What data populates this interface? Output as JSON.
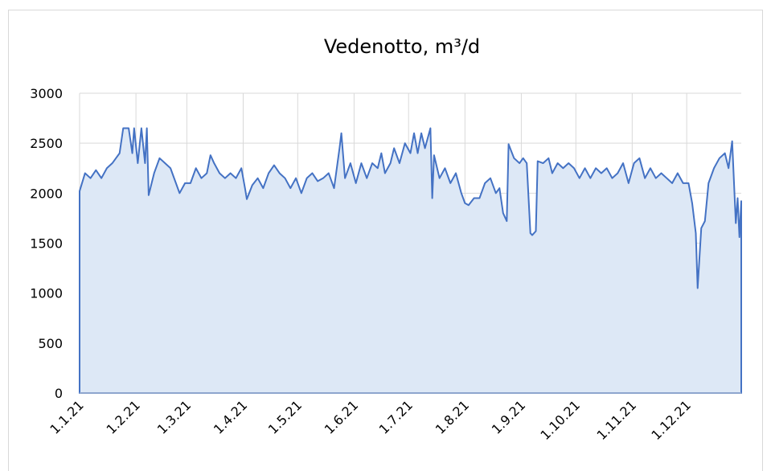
{
  "chart_data": {
    "type": "area",
    "title": "Vedenotto,  m³/d",
    "color": "#4472c4",
    "fill": "#dde8f6",
    "x": [
      0,
      3,
      6,
      9,
      12,
      15,
      18,
      20,
      22,
      24,
      27,
      29,
      30,
      32,
      34,
      36,
      37,
      38,
      41,
      44,
      47,
      50,
      53,
      55,
      58,
      61,
      64,
      67,
      70,
      72,
      74,
      77,
      80,
      83,
      86,
      89,
      91,
      92,
      95,
      98,
      101,
      104,
      107,
      110,
      113,
      116,
      119,
      122,
      125,
      128,
      131,
      134,
      137,
      140,
      143,
      144,
      146,
      149,
      152,
      155,
      158,
      161,
      164,
      166,
      168,
      171,
      173,
      176,
      179,
      182,
      184,
      186,
      188,
      190,
      193,
      194,
      195,
      198,
      201,
      204,
      207,
      210,
      212,
      214,
      217,
      220,
      223,
      226,
      229,
      231,
      233,
      235,
      236,
      239,
      242,
      244,
      246,
      248,
      249,
      251,
      252,
      255,
      258,
      260,
      263,
      266,
      269,
      272,
      275,
      278,
      281,
      284,
      287,
      290,
      293,
      296,
      299,
      302,
      305,
      308,
      311,
      314,
      317,
      320,
      323,
      326,
      329,
      332,
      335,
      337,
      339,
      340,
      342,
      344,
      346,
      349,
      352,
      355,
      357,
      359,
      361,
      362,
      363,
      364
    ],
    "values": [
      2020,
      2200,
      2150,
      2230,
      2150,
      2250,
      2300,
      2350,
      2400,
      2650,
      2650,
      2400,
      2650,
      2300,
      2650,
      2300,
      2650,
      1980,
      2200,
      2350,
      2300,
      2250,
      2100,
      2000,
      2100,
      2100,
      2250,
      2150,
      2200,
      2380,
      2300,
      2200,
      2150,
      2200,
      2150,
      2250,
      2050,
      1940,
      2080,
      2150,
      2050,
      2200,
      2280,
      2200,
      2150,
      2050,
      2150,
      2000,
      2150,
      2200,
      2120,
      2150,
      2200,
      2050,
      2450,
      2600,
      2150,
      2300,
      2100,
      2300,
      2150,
      2300,
      2250,
      2400,
      2200,
      2300,
      2450,
      2300,
      2500,
      2400,
      2600,
      2400,
      2600,
      2450,
      2650,
      1950,
      2380,
      2150,
      2250,
      2100,
      2200,
      2000,
      1900,
      1880,
      1950,
      1950,
      2100,
      2150,
      2000,
      2050,
      1800,
      1720,
      2490,
      2350,
      2300,
      2350,
      2300,
      1600,
      1580,
      1620,
      2320,
      2300,
      2350,
      2200,
      2300,
      2250,
      2300,
      2250,
      2150,
      2250,
      2150,
      2250,
      2200,
      2250,
      2150,
      2200,
      2300,
      2100,
      2300,
      2350,
      2150,
      2250,
      2150,
      2200,
      2150,
      2100,
      2200,
      2100,
      2100,
      1900,
      1600,
      1050,
      1650,
      1720,
      2100,
      2250,
      2350,
      2400,
      2250,
      2520,
      1700,
      1950,
      1560,
      1920
    ],
    "xlim": [
      0,
      364
    ],
    "xticks": [
      {
        "value": 0,
        "label": "1.1.21"
      },
      {
        "value": 31,
        "label": "1.2.21"
      },
      {
        "value": 59,
        "label": "1.3.21"
      },
      {
        "value": 90,
        "label": "1.4.21"
      },
      {
        "value": 120,
        "label": "1.5.21"
      },
      {
        "value": 151,
        "label": "1.6.21"
      },
      {
        "value": 181,
        "label": "1.7.21"
      },
      {
        "value": 212,
        "label": "1.8.21"
      },
      {
        "value": 243,
        "label": "1.9.21"
      },
      {
        "value": 273,
        "label": "1.10.21"
      },
      {
        "value": 304,
        "label": "1.11.21"
      },
      {
        "value": 334,
        "label": "1.12.21"
      }
    ],
    "ylim": [
      0,
      3000
    ],
    "yticks": [
      0,
      500,
      1000,
      1500,
      2000,
      2500,
      3000
    ],
    "grid": true
  }
}
